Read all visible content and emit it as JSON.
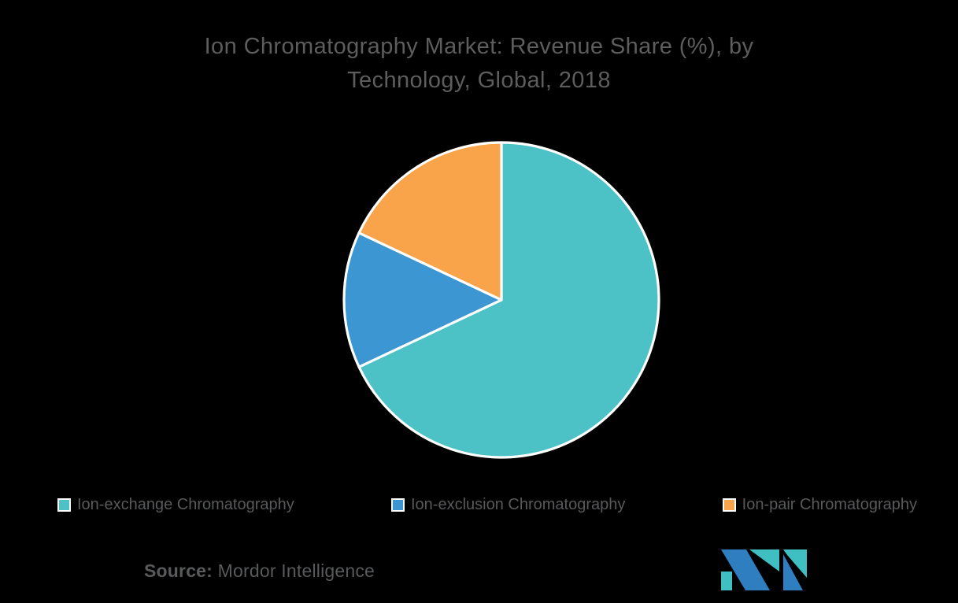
{
  "background_color": "#000000",
  "header": {
    "title_line1": "Ion Chromatography Market: Revenue Share (%), by",
    "title_line2": "Technology, Global, 2018"
  },
  "chart_data": {
    "type": "pie",
    "title": "Ion Chromatography Market: Revenue Share (%), by Technology, Global, 2018",
    "categories": [
      "Ion-exchange Chromatography",
      "Ion-exclusion Chromatography",
      "Ion-pair Chromatography"
    ],
    "values": [
      68,
      14,
      18
    ],
    "unit": "%",
    "colors": [
      "#4CC2C6",
      "#3B96D2",
      "#F9A34B"
    ],
    "start_angle_deg": 0,
    "direction": "clockwise",
    "slice_border_color": "#ffffff",
    "legend_position": "bottom",
    "title_color": "#5d5d5d"
  },
  "legend": {
    "items": [
      {
        "label": "Ion-exchange Chromatography",
        "color": "#4CC2C6"
      },
      {
        "label": "Ion-exclusion Chromatography",
        "color": "#3B96D2"
      },
      {
        "label": "Ion-pair Chromatography",
        "color": "#F9A34B"
      }
    ]
  },
  "footer": {
    "source_label": "Source:",
    "source_value": "Mordor Intelligence",
    "logo": {
      "name": "mordor-intelligence-logo",
      "blue": "#2E7EC0",
      "teal": "#3FBFC1"
    }
  }
}
